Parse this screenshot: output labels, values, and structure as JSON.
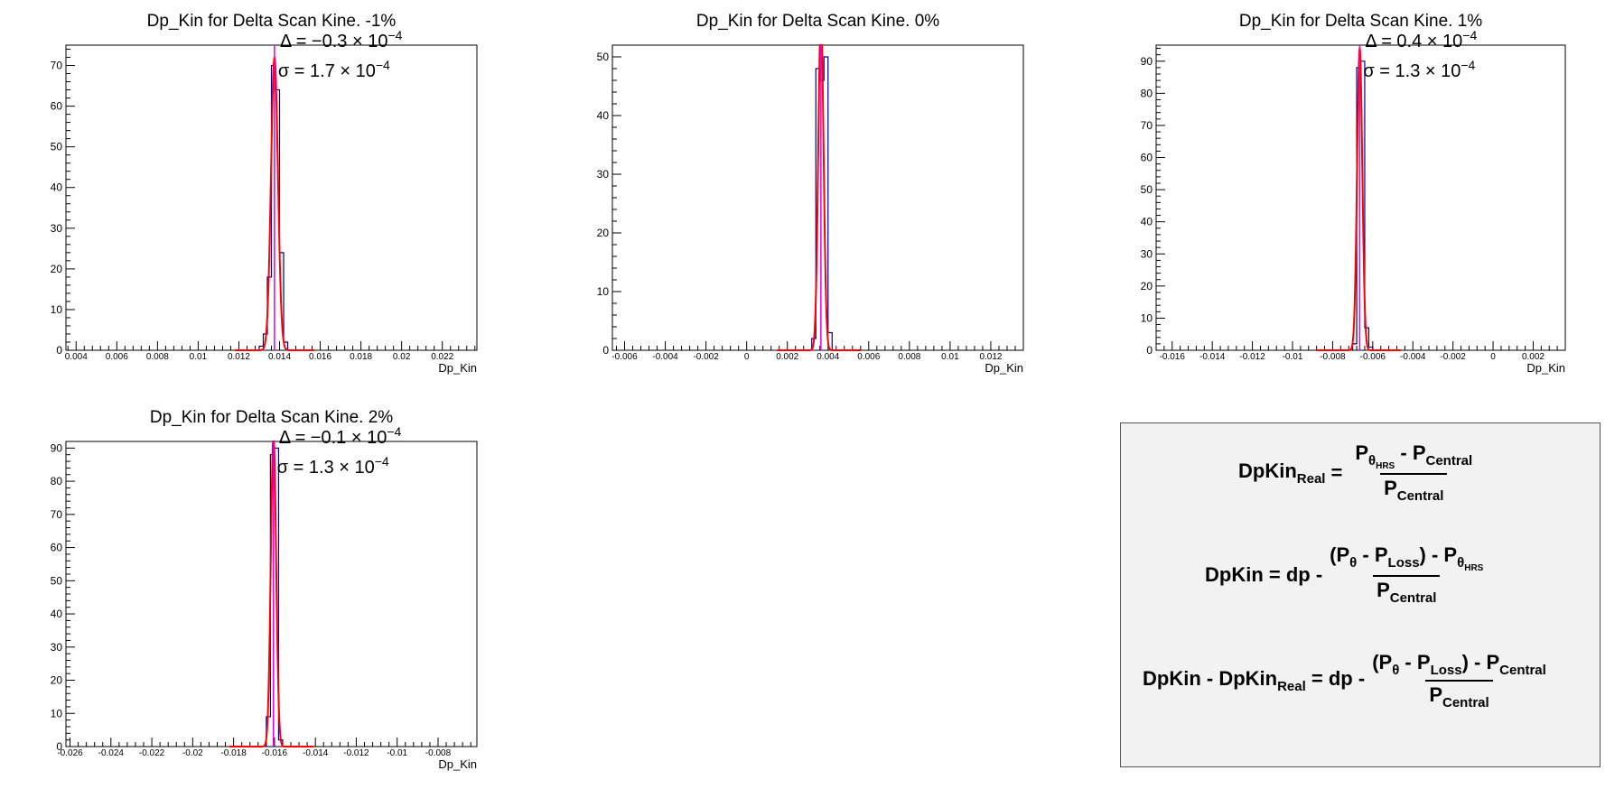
{
  "colors": {
    "histogram": "#00008b",
    "fit": "#ff0000",
    "mean_line": "#e000e0",
    "axis": "#000000"
  },
  "chart_data": [
    {
      "type": "histogram",
      "title": "Dp_Kin for Delta Scan Kine. -1%",
      "xlabel": "Dp_Kin",
      "xlim": [
        0.0035,
        0.0237
      ],
      "ylim": [
        0,
        75
      ],
      "x_ticks": [
        "0.004",
        "0.006",
        "0.008",
        "0.01",
        "0.012",
        "0.014",
        "0.016",
        "0.018",
        "0.02",
        "0.022"
      ],
      "x_tick_values": [
        0.004,
        0.006,
        0.008,
        0.01,
        0.012,
        0.014,
        0.016,
        0.018,
        0.02,
        0.022
      ],
      "y_ticks": [
        0,
        10,
        20,
        30,
        40,
        50,
        60,
        70
      ],
      "bin_width": 0.0002,
      "bins": [
        {
          "x": 0.013,
          "count": 1
        },
        {
          "x": 0.0132,
          "count": 4
        },
        {
          "x": 0.0134,
          "count": 18
        },
        {
          "x": 0.0136,
          "count": 70
        },
        {
          "x": 0.0138,
          "count": 64
        },
        {
          "x": 0.014,
          "count": 24
        },
        {
          "x": 0.0142,
          "count": 2
        }
      ],
      "fit": {
        "mean": 0.01375,
        "sigma": 0.00017,
        "amplitude": 72,
        "range": [
          0.0118,
          0.0157
        ]
      },
      "annotations": {
        "delta_label": "Δ = −0.3 × 10",
        "delta_exp": "−4",
        "sigma_label": "σ = 1.7 × 10",
        "sigma_exp": "−4"
      }
    },
    {
      "type": "histogram",
      "title": "Dp_Kin for Delta Scan Kine. 0%",
      "xlabel": "Dp_Kin",
      "xlim": [
        -0.0066,
        0.0136
      ],
      "ylim": [
        0,
        52
      ],
      "x_ticks": [
        "-0.006",
        "-0.004",
        "-0.002",
        "0",
        "0.002",
        "0.004",
        "0.006",
        "0.008",
        "0.01",
        "0.012"
      ],
      "x_tick_values": [
        -0.006,
        -0.004,
        -0.002,
        0,
        0.002,
        0.004,
        0.006,
        0.008,
        0.01,
        0.012
      ],
      "y_ticks": [
        0,
        10,
        20,
        30,
        40,
        50
      ],
      "bin_width": 0.0002,
      "bins": [
        {
          "x": 0.0032,
          "count": 2
        },
        {
          "x": 0.0034,
          "count": 48
        },
        {
          "x": 0.0036,
          "count": 46
        },
        {
          "x": 0.0038,
          "count": 50
        },
        {
          "x": 0.004,
          "count": 3
        }
      ],
      "fit": {
        "mean": 0.00365,
        "sigma": 0.00013,
        "amplitude": 57,
        "range": [
          0.0015,
          0.0056
        ]
      },
      "annotations": {}
    },
    {
      "type": "histogram",
      "title": "Dp_Kin for Delta Scan Kine. 1%",
      "xlabel": "Dp_Kin",
      "xlim": [
        -0.0168,
        0.0036
      ],
      "ylim": [
        0,
        95
      ],
      "x_ticks": [
        "-0.016",
        "-0.014",
        "-0.012",
        "-0.01",
        "-0.008",
        "-0.006",
        "-0.004",
        "-0.002",
        "0",
        "0.002"
      ],
      "x_tick_values": [
        -0.016,
        -0.014,
        -0.012,
        -0.01,
        -0.008,
        -0.006,
        -0.004,
        -0.002,
        0,
        0.002
      ],
      "y_ticks": [
        0,
        10,
        20,
        30,
        40,
        50,
        60,
        70,
        80,
        90
      ],
      "bin_width": 0.0002,
      "bins": [
        {
          "x": -0.007,
          "count": 2
        },
        {
          "x": -0.0068,
          "count": 88
        },
        {
          "x": -0.0066,
          "count": 90
        },
        {
          "x": -0.0064,
          "count": 7
        },
        {
          "x": -0.0062,
          "count": 1
        }
      ],
      "fit": {
        "mean": -0.00665,
        "sigma": 0.00013,
        "amplitude": 94,
        "range": [
          -0.0088,
          -0.0046
        ]
      },
      "annotations": {
        "delta_label": "Δ = 0.4 × 10",
        "delta_exp": "−4",
        "sigma_label": "σ = 1.3 × 10",
        "sigma_exp": "−4"
      }
    },
    {
      "type": "histogram",
      "title": "Dp_Kin for Delta Scan Kine. 2%",
      "xlabel": "Dp_Kin",
      "xlim": [
        -0.0262,
        -0.0061
      ],
      "ylim": [
        0,
        92
      ],
      "x_ticks": [
        "-0.026",
        "-0.024",
        "-0.022",
        "-0.02",
        "-0.018",
        "-0.016",
        "-0.014",
        "-0.012",
        "-0.01",
        "-0.008"
      ],
      "x_tick_values": [
        -0.026,
        -0.024,
        -0.022,
        -0.02,
        -0.018,
        -0.016,
        -0.014,
        -0.012,
        -0.01,
        -0.008
      ],
      "y_ticks": [
        0,
        10,
        20,
        30,
        40,
        50,
        60,
        70,
        80,
        90
      ],
      "bin_width": 0.0002,
      "bins": [
        {
          "x": -0.0164,
          "count": 9
        },
        {
          "x": -0.0162,
          "count": 88
        },
        {
          "x": -0.016,
          "count": 90
        },
        {
          "x": -0.0158,
          "count": 2
        }
      ],
      "fit": {
        "mean": -0.01605,
        "sigma": 0.00013,
        "amplitude": 94,
        "range": [
          -0.0182,
          -0.0141
        ]
      },
      "annotations": {
        "delta_label": "Δ = −0.1 × 10",
        "delta_exp": "−4",
        "sigma_label": "σ = 1.3 × 10",
        "sigma_exp": "−4"
      }
    }
  ],
  "formulas": {
    "eq1": {
      "lhs_main": "DpKin",
      "lhs_sub": "Real",
      "equals": "=",
      "num_a": "P",
      "num_a_sub": "θ",
      "num_a_subsub": "HRS",
      "num_minus": "-",
      "num_b": "P",
      "num_b_sub": "Central",
      "den": "P",
      "den_sub": "Central"
    },
    "eq2": {
      "lhs": "DpKin = dp -",
      "num_open": "(P",
      "num_theta": "θ",
      "num_minus": "-",
      "num_loss": "P",
      "num_loss_sub": "Loss",
      "num_close": ") - P",
      "num_tail_sub": "θ",
      "num_tail_subsub": "HRS",
      "den": "P",
      "den_sub": "Central"
    },
    "eq3": {
      "lhs_a": "DpKin - DpKin",
      "lhs_sub": "Real",
      "lhs_b": "= dp -",
      "num_open": "(P",
      "num_theta": "θ",
      "num_minus": "-",
      "num_loss": "P",
      "num_loss_sub": "Loss",
      "num_close": ") - P",
      "num_tail_sub": "Central",
      "den": "P",
      "den_sub": "Central"
    }
  }
}
